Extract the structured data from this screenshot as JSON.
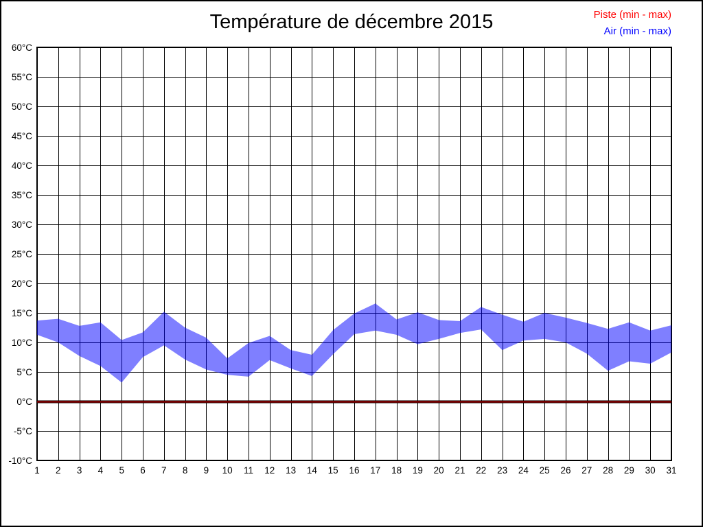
{
  "page": {
    "title": "Température de décembre 2015"
  },
  "legend": {
    "items": [
      {
        "label": "Piste (min - max)",
        "color": "#ff0000"
      },
      {
        "label": "Air (min - max)",
        "color": "#0000ff"
      }
    ]
  },
  "chart_data": {
    "type": "area",
    "title": "Température de décembre 2015",
    "xlabel": "",
    "ylabel": "",
    "x": [
      1,
      2,
      3,
      4,
      5,
      6,
      7,
      8,
      9,
      10,
      11,
      12,
      13,
      14,
      15,
      16,
      17,
      18,
      19,
      20,
      21,
      22,
      23,
      24,
      25,
      26,
      27,
      28,
      29,
      30,
      31
    ],
    "series": [
      {
        "name": "Piste (min - max)",
        "color": "#ff0000",
        "render": "flat-line-at-zero",
        "min": [
          0,
          0,
          0,
          0,
          0,
          0,
          0,
          0,
          0,
          0,
          0,
          0,
          0,
          0,
          0,
          0,
          0,
          0,
          0,
          0,
          0,
          0,
          0,
          0,
          0,
          0,
          0,
          0,
          0,
          0,
          0
        ],
        "max": [
          0,
          0,
          0,
          0,
          0,
          0,
          0,
          0,
          0,
          0,
          0,
          0,
          0,
          0,
          0,
          0,
          0,
          0,
          0,
          0,
          0,
          0,
          0,
          0,
          0,
          0,
          0,
          0,
          0,
          0,
          0
        ]
      },
      {
        "name": "Air (min - max)",
        "color": "#0000ff",
        "render": "band",
        "min": [
          11.3,
          10.0,
          7.7,
          6.0,
          3.2,
          7.5,
          9.5,
          7.1,
          5.4,
          4.5,
          4.2,
          7.0,
          5.6,
          4.3,
          8.0,
          11.4,
          12.0,
          11.3,
          9.7,
          10.6,
          11.6,
          12.2,
          8.7,
          10.3,
          10.6,
          10.0,
          8.1,
          5.2,
          6.8,
          6.4,
          8.3
        ],
        "max": [
          13.7,
          14.0,
          12.8,
          13.4,
          10.4,
          11.7,
          15.2,
          12.5,
          10.8,
          7.3,
          9.9,
          11.1,
          8.7,
          7.9,
          12.1,
          14.9,
          16.6,
          13.9,
          15.1,
          13.8,
          13.6,
          16.0,
          14.7,
          13.5,
          15.0,
          14.2,
          13.3,
          12.3,
          13.4,
          12.0,
          12.9
        ]
      }
    ],
    "ylim": [
      -10,
      60
    ],
    "y_tick_step": 5,
    "y_tick_suffix": "°C",
    "grid": true,
    "legend_position": "top-right"
  }
}
